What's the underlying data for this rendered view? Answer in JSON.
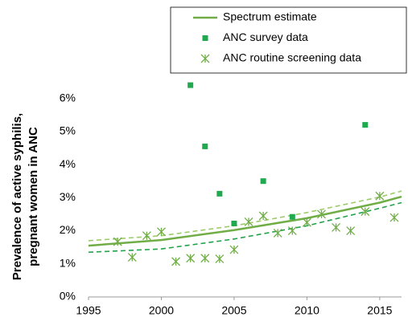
{
  "chart_data": {
    "type": "scatter-line",
    "ylabel": [
      "Prevalence of active syphilis,",
      "pregnant women in ANC"
    ],
    "xlim": [
      1995,
      2016.5
    ],
    "xticks": [
      1995,
      2000,
      2005,
      2010,
      2015
    ],
    "ylim": [
      0,
      6.5
    ],
    "yticks": [
      {
        "value": 0,
        "label": "0%"
      },
      {
        "value": 1,
        "label": "1%"
      },
      {
        "value": 2,
        "label": "2%"
      },
      {
        "value": 3,
        "label": "3%"
      },
      {
        "value": 4,
        "label": "4%"
      },
      {
        "value": 5,
        "label": "5%"
      },
      {
        "value": 6,
        "label": "6%"
      }
    ],
    "series": [
      {
        "name": "Spectrum estimate",
        "kind": "line",
        "color": "#70ad47",
        "x": [
          1995,
          2000,
          2005,
          2010,
          2015,
          2016.5
        ],
        "values": [
          1.55,
          1.72,
          2.02,
          2.38,
          2.85,
          3.03
        ],
        "upper": [
          1.7,
          1.85,
          2.15,
          2.55,
          3.02,
          3.2
        ],
        "upper_color": "#9dcb6b",
        "lower": [
          1.35,
          1.45,
          1.75,
          2.15,
          2.68,
          2.85
        ],
        "lower_color": "#22a24a"
      },
      {
        "name": "ANC survey data",
        "kind": "square",
        "color": "#1faa4f",
        "x": [
          2002,
          2003,
          2004,
          2005,
          2007,
          2009,
          2014
        ],
        "values": [
          6.4,
          4.55,
          3.12,
          2.22,
          3.5,
          2.42,
          5.2
        ]
      },
      {
        "name": "ANC routine screening data",
        "kind": "asterisk",
        "color": "#70ad47",
        "x": [
          1997,
          1998,
          1999,
          2000,
          2001,
          2002,
          2003,
          2004,
          2005,
          2006,
          2007,
          2008,
          2009,
          2010,
          2011,
          2012,
          2013,
          2014,
          2015,
          2016
        ],
        "values": [
          1.67,
          1.2,
          1.85,
          1.97,
          1.07,
          1.17,
          1.17,
          1.15,
          1.43,
          2.27,
          2.45,
          1.93,
          2.0,
          2.25,
          2.5,
          2.1,
          2.0,
          2.58,
          3.05,
          2.4
        ]
      }
    ]
  }
}
